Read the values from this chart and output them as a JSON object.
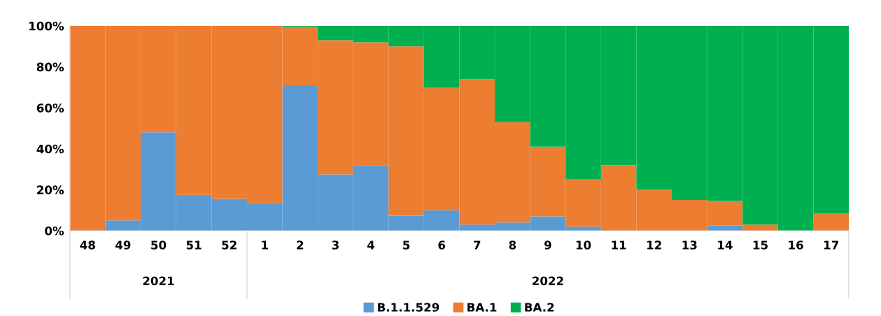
{
  "chart_data": {
    "type": "bar",
    "stacked": true,
    "categories": [
      "48",
      "49",
      "50",
      "51",
      "52",
      "1",
      "2",
      "3",
      "4",
      "5",
      "6",
      "7",
      "8",
      "9",
      "10",
      "11",
      "12",
      "13",
      "14",
      "15",
      "16",
      "17"
    ],
    "series": [
      {
        "name": "B.1.1.529",
        "color": "#5b9bd5",
        "values": [
          0,
          5,
          48,
          17.5,
          15.5,
          13,
          71,
          27.5,
          32,
          7.3,
          10,
          3,
          4,
          7,
          2,
          0,
          0,
          0,
          2.5,
          0,
          0,
          0
        ]
      },
      {
        "name": "BA.1",
        "color": "#ed7d31",
        "values": [
          100,
          95,
          52,
          82.5,
          84.5,
          87,
          28.5,
          65.5,
          60,
          82.7,
          60,
          71,
          49,
          34,
          23,
          32,
          20,
          15,
          12,
          3,
          0,
          8.5
        ]
      },
      {
        "name": "BA.2",
        "color": "#00b050",
        "values": [
          0,
          0,
          0,
          0,
          0,
          0,
          0.5,
          7,
          8,
          10,
          30,
          26,
          47,
          59,
          75,
          68,
          80,
          85,
          85.5,
          97,
          100,
          91.5
        ]
      }
    ],
    "ylim": [
      0,
      100
    ],
    "yticks": [
      {
        "value": 0,
        "label": "0%"
      },
      {
        "value": 20,
        "label": "20%"
      },
      {
        "value": 40,
        "label": "40%"
      },
      {
        "value": 60,
        "label": "60%"
      },
      {
        "value": 80,
        "label": "80%"
      },
      {
        "value": 100,
        "label": "100%"
      }
    ],
    "annotations": [
      "2021",
      "2022"
    ],
    "legend": "bottom",
    "grid": false
  }
}
